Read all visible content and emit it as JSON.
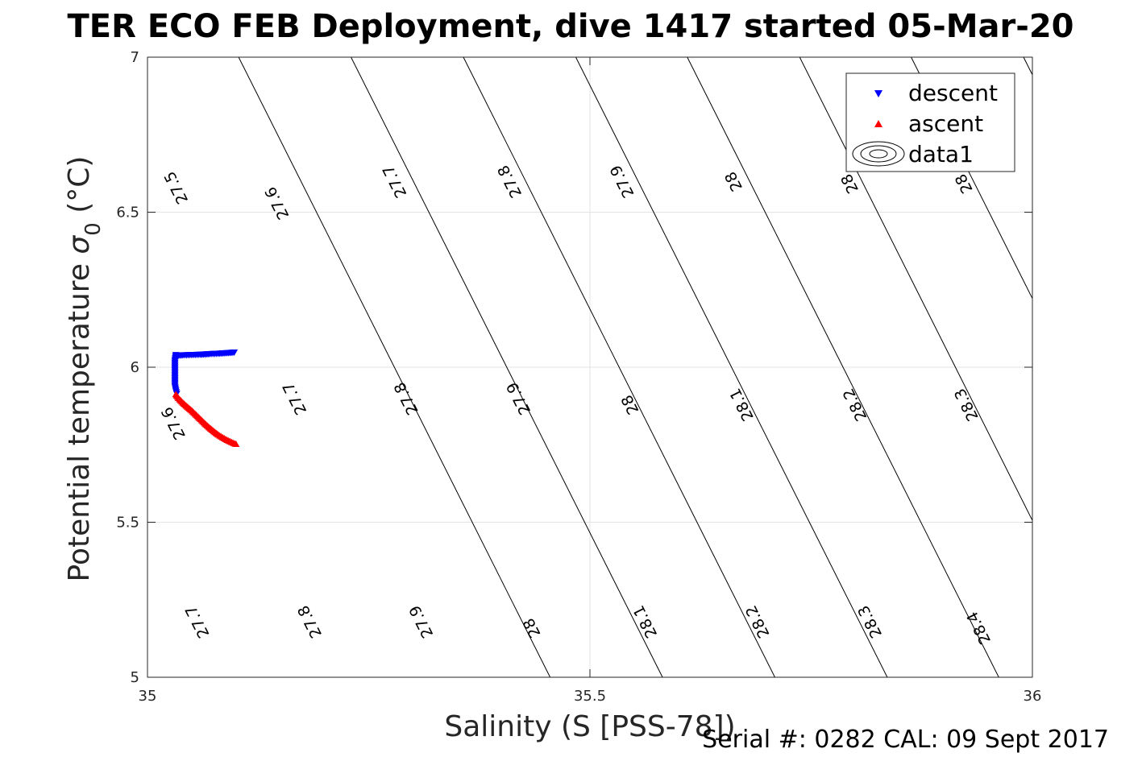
{
  "chart_data": {
    "type": "scatter",
    "title": "TER ECO FEB Deployment, dive 1417 started 05-Mar-20",
    "xlabel": "Salinity (S [PSS-78])",
    "ylabel_main": "Potential temperature ",
    "ylabel_symbol": "σ",
    "ylabel_subscript": "0",
    "ylabel_unit": " (°C)",
    "xlim": [
      35,
      36
    ],
    "ylim": [
      5,
      7
    ],
    "xticks": [
      35,
      35.5,
      36
    ],
    "xtick_labels": [
      "35",
      "35.5",
      "36"
    ],
    "yticks": [
      5,
      5.5,
      6,
      6.5,
      7
    ],
    "ytick_labels": [
      "5",
      "5.5",
      "6",
      "6.5",
      "7"
    ],
    "grid": true,
    "legend_position": "top-right",
    "series": [
      {
        "name": "descent",
        "color": "#0000ff",
        "marker": "triangle-down",
        "x": [
          35.098,
          35.09,
          35.08,
          35.07,
          35.06,
          35.05,
          35.04,
          35.035,
          35.032,
          35.031,
          35.031,
          35.031,
          35.031,
          35.031,
          35.032,
          35.033
        ],
        "y": [
          6.048,
          6.046,
          6.044,
          6.043,
          6.041,
          6.04,
          6.039,
          6.038,
          6.04,
          6.02,
          6.0,
          5.98,
          5.96,
          5.94,
          5.925,
          5.915
        ]
      },
      {
        "name": "ascent",
        "color": "#ff0000",
        "marker": "triangle-up",
        "x": [
          35.032,
          35.035,
          35.04,
          35.045,
          35.05,
          35.055,
          35.06,
          35.065,
          35.07,
          35.075,
          35.08,
          35.085,
          35.09,
          35.095,
          35.1
        ],
        "y": [
          5.912,
          5.9,
          5.885,
          5.872,
          5.86,
          5.846,
          5.832,
          5.818,
          5.805,
          5.793,
          5.782,
          5.773,
          5.765,
          5.758,
          5.752
        ]
      }
    ],
    "contour": {
      "name": "data1",
      "levels": [
        27.5,
        27.6,
        27.7,
        27.8,
        27.9,
        28,
        28.1,
        28.2,
        28.3,
        28.4
      ],
      "label_text": [
        "27.5",
        "27.6",
        "27.7",
        "27.8",
        "27.9",
        "28",
        "28.1",
        "28.2",
        "28.3",
        "28.4"
      ],
      "intercepts_salinity_at_7C": [
        35.103,
        35.23,
        35.357,
        35.484,
        35.61,
        35.737,
        35.863,
        35.99,
        null,
        null
      ],
      "salinity_change_per_degC": -0.176,
      "labels": [
        {
          "level": "27.5",
          "x": 35.033,
          "y": 6.58
        },
        {
          "level": "27.6",
          "x": 35.147,
          "y": 6.53
        },
        {
          "level": "27.7",
          "x": 35.28,
          "y": 6.6
        },
        {
          "level": "27.8",
          "x": 35.41,
          "y": 6.6
        },
        {
          "level": "27.9",
          "x": 35.537,
          "y": 6.6
        },
        {
          "level": "28",
          "x": 35.663,
          "y": 6.6
        },
        {
          "level": "28.",
          "x": 35.793,
          "y": 6.6
        },
        {
          "level": "28.",
          "x": 35.922,
          "y": 6.6
        },
        {
          "level": "27.6",
          "x": 35.03,
          "y": 5.82
        },
        {
          "level": "27.7",
          "x": 35.167,
          "y": 5.9
        },
        {
          "level": "27.8",
          "x": 35.293,
          "y": 5.9
        },
        {
          "level": "27.9",
          "x": 35.42,
          "y": 5.9
        },
        {
          "level": "28",
          "x": 35.546,
          "y": 5.88
        },
        {
          "level": "28.1",
          "x": 35.672,
          "y": 5.88
        },
        {
          "level": "28.2",
          "x": 35.8,
          "y": 5.88
        },
        {
          "level": "28.3",
          "x": 35.926,
          "y": 5.88
        },
        {
          "level": "27.7",
          "x": 35.057,
          "y": 5.18
        },
        {
          "level": "27.8",
          "x": 35.184,
          "y": 5.18
        },
        {
          "level": "27.9",
          "x": 35.31,
          "y": 5.18
        },
        {
          "level": "28",
          "x": 35.435,
          "y": 5.16
        },
        {
          "level": "28.1",
          "x": 35.563,
          "y": 5.18
        },
        {
          "level": "28.2",
          "x": 35.69,
          "y": 5.18
        },
        {
          "level": "28.3",
          "x": 35.817,
          "y": 5.18
        },
        {
          "level": "28.4",
          "x": 35.94,
          "y": 5.16
        }
      ]
    },
    "legend": [
      {
        "label": "descent",
        "marker": "triangle-down",
        "color": "#0000ff"
      },
      {
        "label": "ascent",
        "marker": "triangle-up",
        "color": "#ff0000"
      },
      {
        "label": "data1",
        "marker": "contour-icon",
        "color": "#000000"
      }
    ]
  },
  "footer": {
    "text": "Serial #: 0282  CAL: 09 Sept 2017"
  }
}
